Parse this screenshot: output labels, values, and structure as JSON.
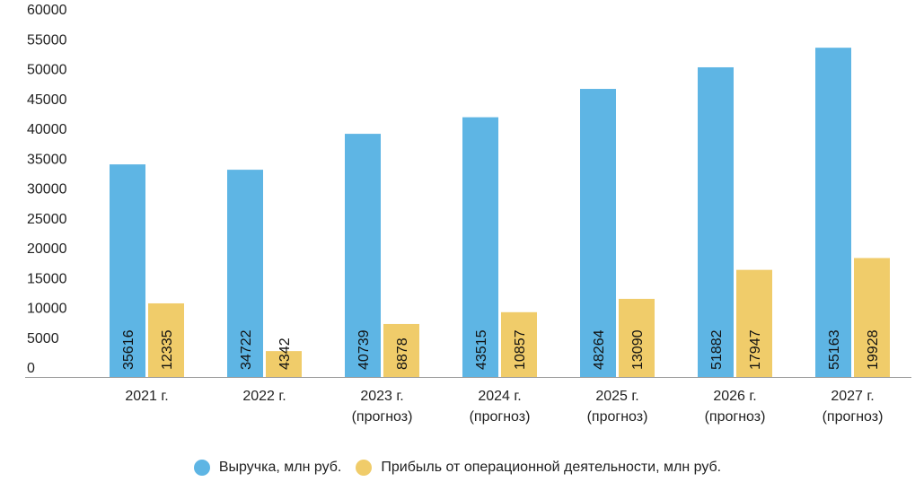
{
  "colors": {
    "revenue": "#5EB5E4",
    "profit": "#F0CC6A",
    "axis": "#9A9A9A",
    "text": "#222222"
  },
  "chart_data": {
    "type": "bar",
    "categories": [
      [
        "2021 г."
      ],
      [
        "2022 г."
      ],
      [
        "2023 г.",
        "(прогноз)"
      ],
      [
        "2024 г.",
        "(прогноз)"
      ],
      [
        "2025 г.",
        "(прогноз)"
      ],
      [
        "2026 г.",
        "(прогноз)"
      ],
      [
        "2027 г.",
        "(прогноз)"
      ]
    ],
    "series": [
      {
        "name": "Выручка, млн руб.",
        "values": [
          35616,
          34722,
          40739,
          43515,
          48264,
          51882,
          55163
        ],
        "color": "#5EB5E4"
      },
      {
        "name": "Прибыль от операционной деятельности, млн руб.",
        "values": [
          12335,
          4342,
          8878,
          10857,
          13090,
          17947,
          19928
        ],
        "color": "#F0CC6A"
      }
    ],
    "yticks": [
      0,
      5000,
      10000,
      15000,
      20000,
      25000,
      30000,
      35000,
      40000,
      45000,
      50000,
      55000,
      60000
    ],
    "ylim": [
      0,
      60000
    ],
    "grid": false,
    "legend": "bottom"
  }
}
